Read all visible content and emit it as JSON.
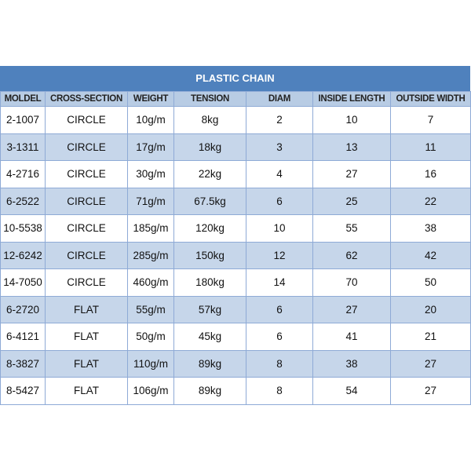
{
  "title": "PLASTIC CHAIN",
  "columns": [
    "MOLDEL",
    "CROSS-SECTION",
    "WEIGHT",
    "TENSION",
    "DIAM",
    "INSIDE LENGTH",
    "OUTSIDE WIDTH"
  ],
  "rows": [
    [
      "2-1007",
      "CIRCLE",
      "10g/m",
      "8kg",
      "2",
      "10",
      "7"
    ],
    [
      "3-1311",
      "CIRCLE",
      "17g/m",
      "18kg",
      "3",
      "13",
      "11"
    ],
    [
      "4-2716",
      "CIRCLE",
      "30g/m",
      "22kg",
      "4",
      "27",
      "16"
    ],
    [
      "6-2522",
      "CIRCLE",
      "71g/m",
      "67.5kg",
      "6",
      "25",
      "22"
    ],
    [
      "10-5538",
      "CIRCLE",
      "185g/m",
      "120kg",
      "10",
      "55",
      "38"
    ],
    [
      "12-6242",
      "CIRCLE",
      "285g/m",
      "150kg",
      "12",
      "62",
      "42"
    ],
    [
      "14-7050",
      "CIRCLE",
      "460g/m",
      "180kg",
      "14",
      "70",
      "50"
    ],
    [
      "6-2720",
      "FLAT",
      "55g/m",
      "57kg",
      "6",
      "27",
      "20"
    ],
    [
      "6-4121",
      "FLAT",
      "50g/m",
      "45kg",
      "6",
      "41",
      "21"
    ],
    [
      "8-3827",
      "FLAT",
      "110g/m",
      "89kg",
      "8",
      "38",
      "27"
    ],
    [
      "8-5427",
      "FLAT",
      "106g/m",
      "89kg",
      "8",
      "54",
      "27"
    ]
  ],
  "colors": {
    "title_bg": "#4f81bd",
    "header_bg": "#b8cce4",
    "alt_row_bg": "#c6d6ea",
    "border": "#8eaad6"
  }
}
